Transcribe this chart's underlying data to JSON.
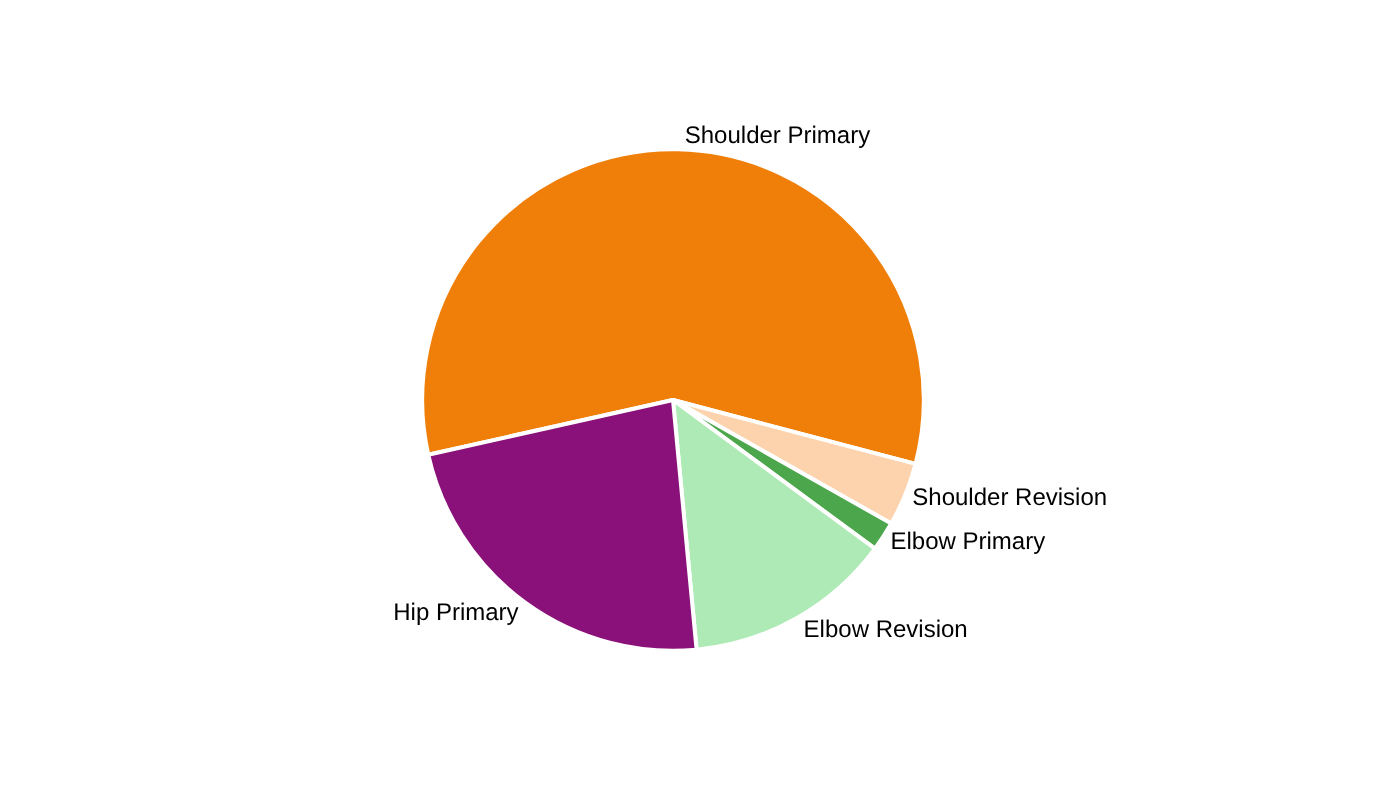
{
  "chart_data": {
    "type": "pie",
    "categories": [
      "Shoulder Primary",
      "Shoulder Revision",
      "Elbow Primary",
      "Elbow Revision",
      "Hip Primary"
    ],
    "values": [
      57.6,
      4.1,
      1.9,
      13.4,
      23.0
    ],
    "colors": [
      "#f07f09",
      "#fcd3ad",
      "#4ca64c",
      "#aeeab5",
      "#891179"
    ],
    "legend": false
  }
}
